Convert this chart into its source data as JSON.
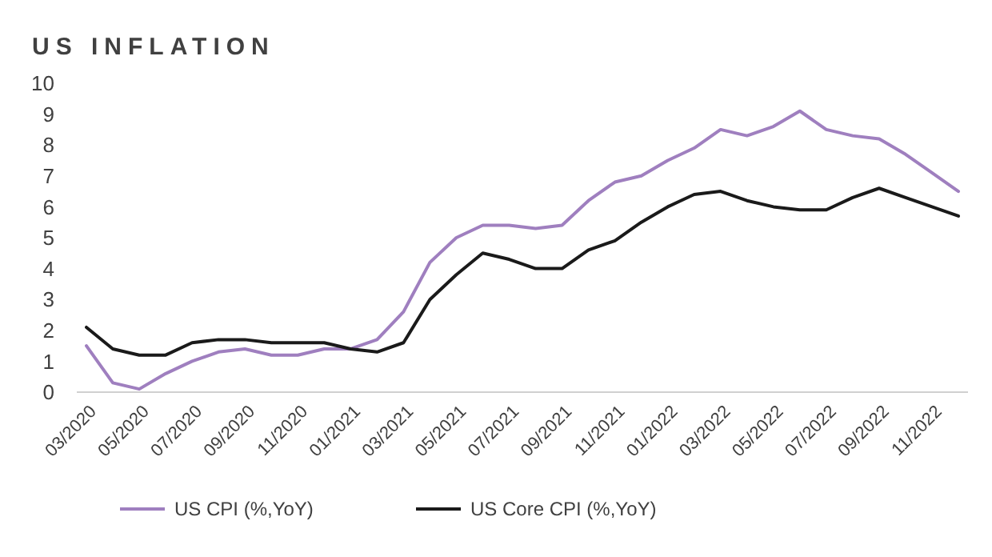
{
  "chart_data": {
    "type": "line",
    "title": "US INFLATION",
    "categories": [
      "03/2020",
      null,
      "05/2020",
      null,
      "07/2020",
      null,
      "09/2020",
      null,
      "11/2020",
      null,
      "01/2021",
      null,
      "03/2021",
      null,
      "05/2021",
      null,
      "07/2021",
      null,
      "09/2021",
      null,
      "11/2021",
      null,
      "01/2022",
      null,
      "03/2022",
      null,
      "05/2022",
      null,
      "07/2022",
      null,
      "09/2022",
      null,
      "11/2022",
      null
    ],
    "series": [
      {
        "name": "US CPI (%,YoY)",
        "color": "#9f7fbf",
        "values": [
          1.5,
          0.3,
          0.1,
          0.6,
          1.0,
          1.3,
          1.4,
          1.2,
          1.2,
          1.4,
          1.4,
          1.7,
          2.6,
          4.2,
          5.0,
          5.4,
          5.4,
          5.3,
          5.4,
          6.2,
          6.8,
          7.0,
          7.5,
          7.9,
          8.5,
          8.3,
          8.6,
          9.1,
          8.5,
          8.3,
          8.2,
          7.7,
          7.1,
          6.5
        ]
      },
      {
        "name": "US Core CPI (%,YoY)",
        "color": "#1a1a1a",
        "values": [
          2.1,
          1.4,
          1.2,
          1.2,
          1.6,
          1.7,
          1.7,
          1.6,
          1.6,
          1.6,
          1.4,
          1.3,
          1.6,
          3.0,
          3.8,
          4.5,
          4.3,
          4.0,
          4.0,
          4.6,
          4.9,
          5.5,
          6.0,
          6.4,
          6.5,
          6.2,
          6.0,
          5.9,
          5.9,
          6.3,
          6.6,
          6.3,
          6.0,
          5.7
        ]
      }
    ],
    "ylim": [
      0,
      10
    ],
    "yticks": [
      0,
      1,
      2,
      3,
      4,
      5,
      6,
      7,
      8,
      9,
      10
    ],
    "grid": false,
    "legend": "bottom",
    "marker": "none",
    "line_style": "solid"
  }
}
